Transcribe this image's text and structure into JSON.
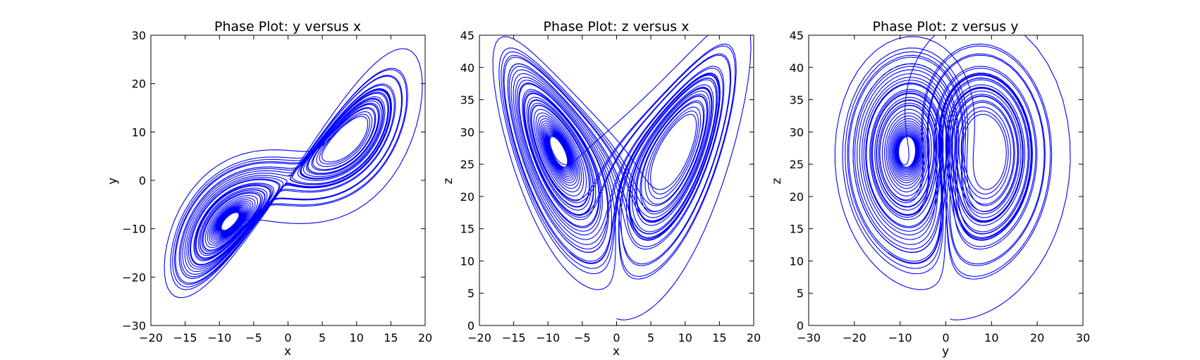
{
  "figure": {
    "background": "#ffffff"
  },
  "chart_data": [
    {
      "type": "line",
      "title": "Phase Plot: y versus x",
      "xlabel": "x",
      "ylabel": "y",
      "xlim": [
        -20,
        20
      ],
      "ylim": [
        -30,
        30
      ],
      "xticks": [
        "−20",
        "−15",
        "−10",
        "−5",
        "0",
        "5",
        "10",
        "15",
        "20"
      ],
      "yticks": [
        "−30",
        "−20",
        "−10",
        "0",
        "10",
        "20",
        "30"
      ],
      "series": [
        {
          "color": "#0000ff",
          "x_var": "x",
          "y_var": "y"
        }
      ],
      "grid": false,
      "legend": "none"
    },
    {
      "type": "line",
      "title": "Phase Plot: z versus x",
      "xlabel": "x",
      "ylabel": "z",
      "xlim": [
        -20,
        20
      ],
      "ylim": [
        0,
        45
      ],
      "xticks": [
        "−20",
        "−15",
        "−10",
        "−5",
        "0",
        "5",
        "10",
        "15",
        "20"
      ],
      "yticks": [
        "0",
        "5",
        "10",
        "15",
        "20",
        "25",
        "30",
        "35",
        "40",
        "45"
      ],
      "series": [
        {
          "color": "#0000ff",
          "x_var": "x",
          "y_var": "z"
        }
      ],
      "grid": false,
      "legend": "none"
    },
    {
      "type": "line",
      "title": "Phase Plot: z versus y",
      "xlabel": "y",
      "ylabel": "z",
      "xlim": [
        -30,
        30
      ],
      "ylim": [
        0,
        45
      ],
      "xticks": [
        "−30",
        "−20",
        "−10",
        "0",
        "10",
        "20",
        "30"
      ],
      "yticks": [
        "0",
        "5",
        "10",
        "15",
        "20",
        "25",
        "30",
        "35",
        "40",
        "45"
      ],
      "series": [
        {
          "color": "#0000ff",
          "x_var": "y",
          "y_var": "z"
        }
      ],
      "grid": false,
      "legend": "none"
    }
  ]
}
